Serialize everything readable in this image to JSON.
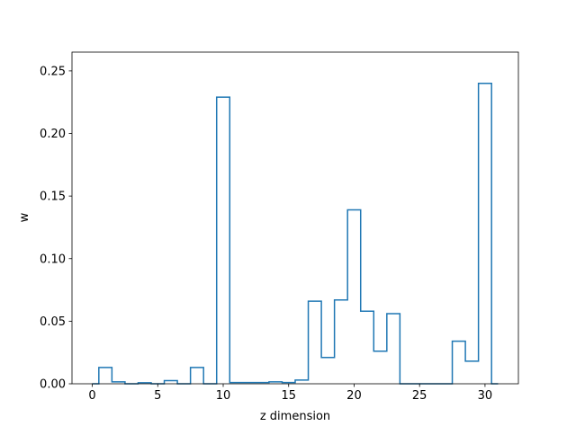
{
  "chart_data": {
    "type": "step",
    "title": "",
    "xlabel": "z dimension",
    "ylabel": "w",
    "xlim": [
      -1.55,
      32.55
    ],
    "ylim": [
      0,
      0.265
    ],
    "xticks": [
      0,
      5,
      10,
      15,
      20,
      25,
      30
    ],
    "yticks": [
      0.0,
      0.05,
      0.1,
      0.15,
      0.2,
      0.25
    ],
    "xtick_labels": [
      "0",
      "5",
      "10",
      "15",
      "20",
      "25",
      "30"
    ],
    "ytick_labels": [
      "0.00",
      "0.05",
      "0.10",
      "0.15",
      "0.20",
      "0.25"
    ],
    "grid": false,
    "line_color": "#1f77b4",
    "step_where": "mid",
    "x": [
      0,
      1,
      2,
      3,
      4,
      5,
      6,
      7,
      8,
      9,
      10,
      11,
      12,
      13,
      14,
      15,
      16,
      17,
      18,
      19,
      20,
      21,
      22,
      23,
      24,
      25,
      26,
      27,
      28,
      29,
      30,
      31
    ],
    "values": [
      0,
      0.013,
      0.0015,
      0,
      0.0008,
      0,
      0.0025,
      0,
      0.013,
      0,
      0.229,
      0.001,
      0.001,
      0.001,
      0.0015,
      0.001,
      0.003,
      0.066,
      0.021,
      0.067,
      0.139,
      0.058,
      0.026,
      0.056,
      0,
      0,
      0,
      0,
      0.034,
      0.018,
      0.24,
      0
    ]
  }
}
